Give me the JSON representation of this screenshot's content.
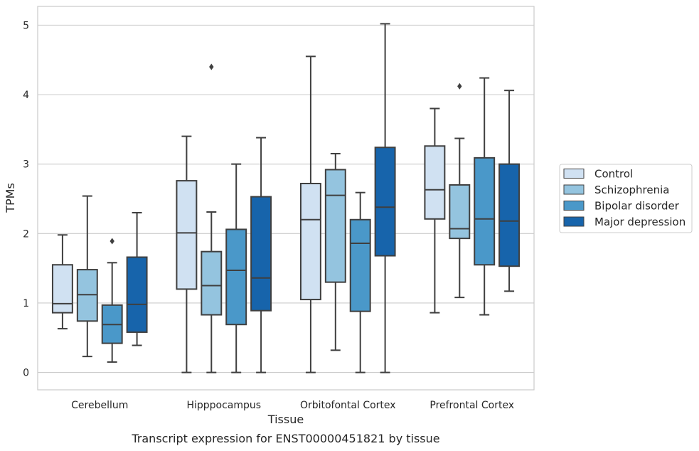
{
  "chart_data": {
    "type": "box",
    "title": "",
    "caption": "Transcript expression for ENST00000451821 by tissue",
    "xlabel": "Tissue",
    "ylabel": "TPMs",
    "ylim": [
      -0.25,
      5.27
    ],
    "yticks": [
      0,
      1,
      2,
      3,
      4,
      5
    ],
    "grid": "horizontal",
    "legend": {
      "placement": "right"
    },
    "categories": [
      "Cerebellum",
      "Hipppocampus",
      "Orbitofontal Cortex",
      "Prefrontal Cortex"
    ],
    "series": [
      {
        "name": "Control",
        "color": "#d0e1f2",
        "boxes": [
          {
            "whislo": 0.63,
            "q1": 0.86,
            "med": 0.99,
            "q3": 1.55,
            "whishi": 1.98,
            "fliers": []
          },
          {
            "whislo": 0.0,
            "q1": 1.2,
            "med": 2.01,
            "q3": 2.76,
            "whishi": 3.4,
            "fliers": []
          },
          {
            "whislo": 0.0,
            "q1": 1.05,
            "med": 2.2,
            "q3": 2.72,
            "whishi": 4.55,
            "fliers": []
          },
          {
            "whislo": 0.86,
            "q1": 2.21,
            "med": 2.63,
            "q3": 3.26,
            "whishi": 3.8,
            "fliers": []
          }
        ]
      },
      {
        "name": "Schizophrenia",
        "color": "#94c4df",
        "boxes": [
          {
            "whislo": 0.23,
            "q1": 0.74,
            "med": 1.12,
            "q3": 1.48,
            "whishi": 2.54,
            "fliers": []
          },
          {
            "whislo": 0.0,
            "q1": 0.83,
            "med": 1.25,
            "q3": 1.74,
            "whishi": 2.31,
            "fliers": [
              4.4
            ]
          },
          {
            "whislo": 0.32,
            "q1": 1.3,
            "med": 2.55,
            "q3": 2.92,
            "whishi": 3.15,
            "fliers": []
          },
          {
            "whislo": 1.08,
            "q1": 1.93,
            "med": 2.07,
            "q3": 2.7,
            "whishi": 3.37,
            "fliers": [
              4.12
            ]
          }
        ]
      },
      {
        "name": "Bipolar disorder",
        "color": "#4a98c9",
        "boxes": [
          {
            "whislo": 0.15,
            "q1": 0.42,
            "med": 0.69,
            "q3": 0.97,
            "whishi": 1.58,
            "fliers": [
              1.89
            ]
          },
          {
            "whislo": 0.0,
            "q1": 0.69,
            "med": 1.47,
            "q3": 2.06,
            "whishi": 3.0,
            "fliers": []
          },
          {
            "whislo": 0.0,
            "q1": 0.88,
            "med": 1.86,
            "q3": 2.2,
            "whishi": 2.59,
            "fliers": []
          },
          {
            "whislo": 0.83,
            "q1": 1.55,
            "med": 2.21,
            "q3": 3.09,
            "whishi": 4.24,
            "fliers": []
          }
        ]
      },
      {
        "name": "Major depression",
        "color": "#1764ab",
        "boxes": [
          {
            "whislo": 0.39,
            "q1": 0.58,
            "med": 0.98,
            "q3": 1.66,
            "whishi": 2.3,
            "fliers": []
          },
          {
            "whislo": 0.0,
            "q1": 0.89,
            "med": 1.36,
            "q3": 2.53,
            "whishi": 3.38,
            "fliers": []
          },
          {
            "whislo": 0.0,
            "q1": 1.68,
            "med": 2.38,
            "q3": 3.24,
            "whishi": 5.02,
            "fliers": []
          },
          {
            "whislo": 1.17,
            "q1": 1.53,
            "med": 2.18,
            "q3": 3.0,
            "whishi": 4.06,
            "fliers": []
          }
        ]
      }
    ]
  }
}
